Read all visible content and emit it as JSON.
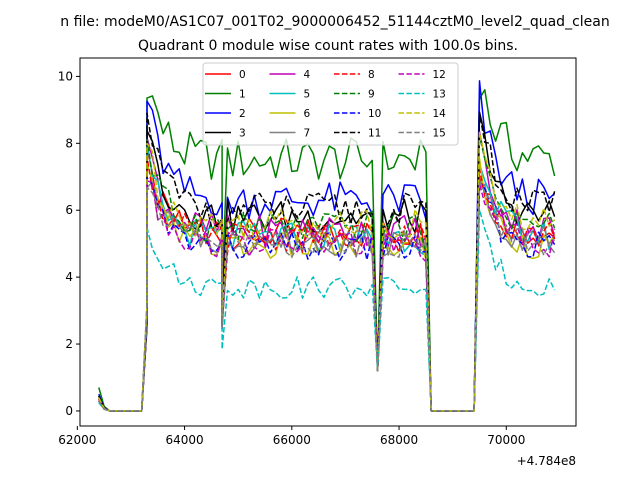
{
  "chart_data": {
    "type": "line",
    "suptitle": "n file: modeM0/AS1C07_001T02_9000006452_51144cztM0_level2_quad_clean",
    "title": "Quadrant 0 module wise count rates with 100.0s bins.",
    "xlabel": "",
    "ylabel": "",
    "offset_text": "+4.784e8",
    "xlim": [
      62050,
      71300
    ],
    "ylim": [
      -0.45,
      10.55
    ],
    "x_ticks": [
      62000,
      64000,
      66000,
      68000,
      70000
    ],
    "y_ticks": [
      0,
      2,
      4,
      6,
      8,
      10
    ],
    "grid": false,
    "legend_position": "upper center",
    "legend_ncol": 4,
    "segments": [
      {
        "start": 62400,
        "end": 63300,
        "step": 100,
        "group": "rise"
      },
      {
        "start": 63300,
        "end": 64700,
        "step": 100,
        "group": "plateau1"
      },
      {
        "start": 64700,
        "end": 64700,
        "step": 100,
        "group": "dip"
      },
      {
        "start": 64800,
        "end": 67500,
        "step": 100,
        "group": "plateau2"
      },
      {
        "start": 67600,
        "end": 67600,
        "step": 100,
        "group": "dip"
      },
      {
        "start": 67700,
        "end": 68500,
        "step": 100,
        "group": "plateau3"
      },
      {
        "start": 68600,
        "end": 69400,
        "step": 100,
        "group": "zero"
      },
      {
        "start": 69500,
        "end": 70900,
        "step": 100,
        "group": "plateau4"
      }
    ],
    "series": [
      {
        "name": "0",
        "color": "#ff0000",
        "dash": "solid",
        "level": 5.3,
        "peak": 7.4,
        "start": 0.3
      },
      {
        "name": "1",
        "color": "#008000",
        "dash": "solid",
        "level": 7.5,
        "peak": 10.0,
        "start": 0.7
      },
      {
        "name": "2",
        "color": "#0000ff",
        "dash": "solid",
        "level": 6.3,
        "peak": 9.4,
        "start": 0.5
      },
      {
        "name": "3",
        "color": "#000000",
        "dash": "solid",
        "level": 5.8,
        "peak": 8.6,
        "start": 0.45
      },
      {
        "name": "4",
        "color": "#bf00bf",
        "dash": "solid",
        "level": 5.4,
        "peak": 8.1,
        "start": 0.4
      },
      {
        "name": "5",
        "color": "#00bfbf",
        "dash": "solid",
        "level": 5.2,
        "peak": 7.7,
        "start": 0.35
      },
      {
        "name": "6",
        "color": "#bfbf00",
        "dash": "solid",
        "level": 4.9,
        "peak": 7.2,
        "start": 0.3
      },
      {
        "name": "7",
        "color": "#808080",
        "dash": "solid",
        "level": 5.1,
        "peak": 7.0,
        "start": 0.35
      },
      {
        "name": "8",
        "color": "#ff0000",
        "dash": "dashed",
        "level": 5.2,
        "peak": 7.5,
        "start": 0.35
      },
      {
        "name": "9",
        "color": "#008000",
        "dash": "dashed",
        "level": 5.5,
        "peak": 7.9,
        "start": 0.4
      },
      {
        "name": "10",
        "color": "#0000ff",
        "dash": "dashed",
        "level": 4.9,
        "peak": 7.1,
        "start": 0.3
      },
      {
        "name": "11",
        "color": "#000000",
        "dash": "dashed",
        "level": 6.0,
        "peak": 8.9,
        "start": 0.45
      },
      {
        "name": "12",
        "color": "#bf00bf",
        "dash": "dashed",
        "level": 5.0,
        "peak": 7.2,
        "start": 0.3
      },
      {
        "name": "13",
        "color": "#00bfbf",
        "dash": "dashed",
        "level": 3.7,
        "peak": 5.7,
        "start": 0.25
      },
      {
        "name": "14",
        "color": "#bfbf00",
        "dash": "dashed",
        "level": 5.6,
        "peak": 8.0,
        "start": 0.4
      },
      {
        "name": "15",
        "color": "#808080",
        "dash": "dashed",
        "level": 5.0,
        "peak": 7.0,
        "start": 0.3
      }
    ]
  }
}
